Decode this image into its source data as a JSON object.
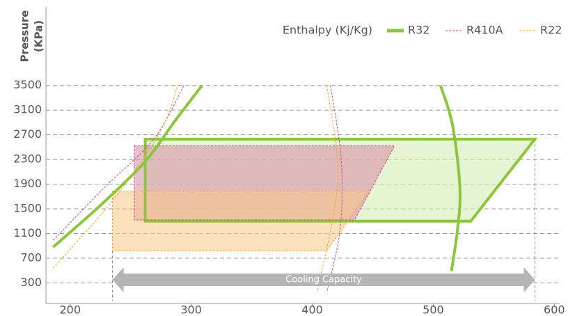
{
  "chart_data": {
    "type": "pressure-enthalpy",
    "y_label": [
      "Pressure",
      "(KPa)"
    ],
    "x_label": "Enthalpy (Kj/Kg)",
    "annotation": "Cooling Capacity",
    "xlim": [
      180,
      605
    ],
    "ylim": [
      0,
      3700
    ],
    "xticks": [
      200,
      300,
      400,
      500,
      600
    ],
    "yticks": [
      300,
      700,
      1100,
      1500,
      1900,
      2300,
      2700,
      3100,
      3500
    ],
    "grid": true,
    "series": [
      {
        "name": "R32",
        "color": "#8cc63f",
        "fill": "#d4ecb4",
        "line_style": "solid",
        "region": {
          "x": [
            262,
            584,
            531,
            262
          ],
          "y": [
            2630,
            2630,
            1300,
            1300
          ]
        },
        "saturation": [
          {
            "x": [
              186,
              228,
              263,
              286,
              309
            ],
            "y": [
              880,
              1610,
              2290,
              2910,
              3500
            ]
          },
          {
            "x": [
              506,
              516,
              522,
              520,
              515
            ],
            "y": [
              3500,
              2850,
              1840,
              1160,
              490
            ]
          }
        ]
      },
      {
        "name": "R410A",
        "color": "#d2466c",
        "fill": "#d98aa8",
        "line_style": "dotted",
        "region": {
          "x": [
            253,
            468,
            435,
            253
          ],
          "y": [
            2520,
            2520,
            1320,
            1320
          ]
        },
        "saturation": [
          {
            "x": [
              186,
              228,
              269,
              294
            ],
            "y": [
              990,
              1840,
              2630,
              3500
            ]
          },
          {
            "x": [
              415,
              424,
              423,
              412
            ],
            "y": [
              3500,
              2290,
              1160,
              150
            ]
          }
        ]
      },
      {
        "name": "R22",
        "color": "#f5a623",
        "fill": "#f9c98a",
        "line_style": "dotted",
        "region": {
          "x": [
            235,
            447,
            412,
            235
          ],
          "y": [
            1790,
            1790,
            820,
            820
          ]
        },
        "saturation": [
          {
            "x": [
              186,
              234,
              274,
              289
            ],
            "y": [
              540,
              1610,
              2740,
              3500
            ]
          },
          {
            "x": [
              412,
              421,
              404
            ],
            "y": [
              3500,
              1950,
              150
            ]
          }
        ]
      }
    ]
  }
}
